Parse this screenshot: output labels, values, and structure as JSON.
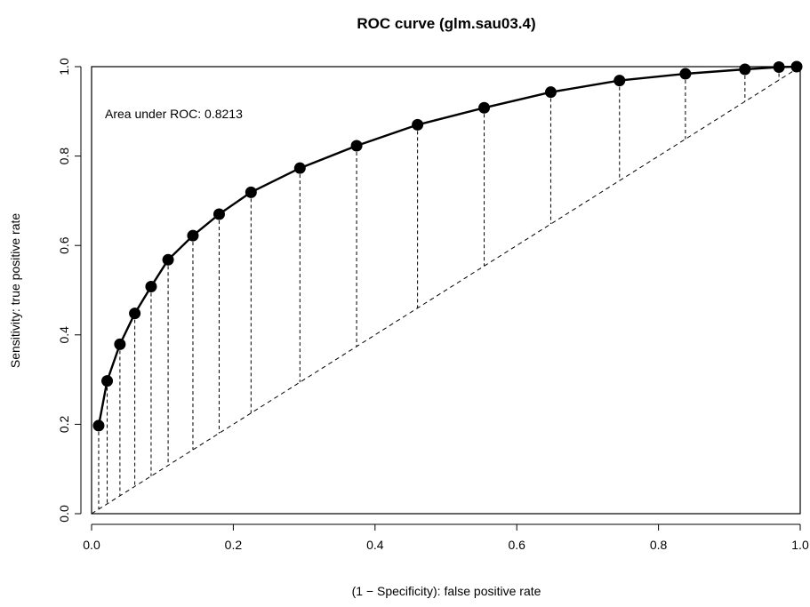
{
  "chart_data": {
    "type": "line",
    "title": "ROC curve (glm.sau03.4)",
    "xlabel": "(1 − Specificity): false positive rate",
    "ylabel": "Sensitivity: true positive rate",
    "xlim": [
      0,
      1
    ],
    "ylim": [
      0,
      1
    ],
    "x_ticks": [
      "0.0",
      "0.2",
      "0.4",
      "0.6",
      "0.8",
      "1.0"
    ],
    "y_ticks": [
      "0.0",
      "0.2",
      "0.4",
      "0.6",
      "0.8",
      "1.0"
    ],
    "annotation": "Area under ROC: 0.8213",
    "grid": false,
    "legend": "none",
    "series": [
      {
        "style": "solid line with filled circle markers",
        "x": [
          0.01,
          0.022,
          0.04,
          0.061,
          0.084,
          0.108,
          0.143,
          0.18,
          0.225,
          0.294,
          0.374,
          0.46,
          0.554,
          0.648,
          0.745,
          0.838,
          0.922,
          0.97,
          0.995
        ],
        "y": [
          0.197,
          0.297,
          0.379,
          0.448,
          0.508,
          0.568,
          0.622,
          0.67,
          0.719,
          0.773,
          0.823,
          0.87,
          0.908,
          0.943,
          0.969,
          0.984,
          0.994,
          0.999,
          1.0
        ]
      },
      {
        "style": "dashed diagonal reference line",
        "x": [
          0,
          1
        ],
        "y": [
          0,
          1
        ]
      }
    ],
    "drop_lines": "dashed vertical segments from each curve point down to the diagonal",
    "colors": {
      "line": "#000000",
      "background": "#ffffff"
    }
  }
}
